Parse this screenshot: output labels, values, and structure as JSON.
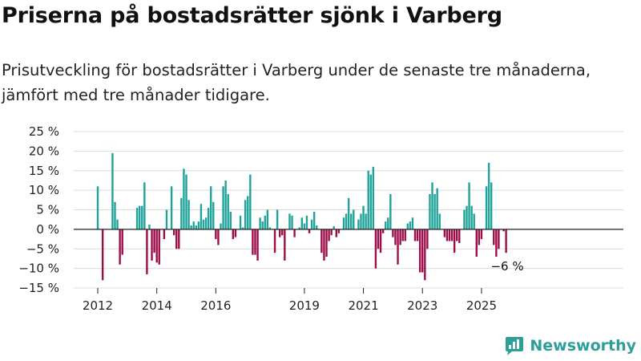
{
  "chart_data": {
    "type": "bar",
    "title": "Priserna på bostadsrätter sjönk i Varberg",
    "subtitle": "Prisutveckling för bostadsrätter i Varberg under de senaste tre månaderna, jämfört med tre månader tidigare.",
    "xlabel": "",
    "ylabel": "",
    "ylim": [
      -15,
      25
    ],
    "yticks": [
      -15,
      -10,
      -5,
      0,
      5,
      10,
      15,
      20,
      25
    ],
    "ytick_labels": [
      "−15 %",
      "−10 %",
      "−5 %",
      "0 %",
      "5 %",
      "10 %",
      "15 %",
      "20 %",
      "25 %"
    ],
    "x_start": "2012-01",
    "xticks": [
      {
        "label": "2012",
        "month_index": 0
      },
      {
        "label": "2014",
        "month_index": 24
      },
      {
        "label": "2016",
        "month_index": 48
      },
      {
        "label": "2019",
        "month_index": 84
      },
      {
        "label": "2021",
        "month_index": 108
      },
      {
        "label": "2023",
        "month_index": 132
      },
      {
        "label": "2025",
        "month_index": 156
      }
    ],
    "values": [
      11,
      null,
      -13,
      null,
      null,
      null,
      19.5,
      7,
      2.5,
      -9,
      -6.5,
      null,
      null,
      null,
      null,
      null,
      5.5,
      6,
      6,
      12,
      -11.5,
      1.2,
      -8,
      -6,
      -8.5,
      -9,
      null,
      -2.5,
      5,
      null,
      11,
      -1.5,
      -5,
      -5,
      8,
      15.5,
      14,
      7.5,
      1,
      2,
      1,
      2,
      6.5,
      2.5,
      3,
      5.5,
      11,
      7,
      -2.5,
      -4,
      1.5,
      11,
      12.5,
      9,
      4.5,
      -2.5,
      -2,
      null,
      3.5,
      0.5,
      7.5,
      8.5,
      14,
      -6.5,
      -6.5,
      -8,
      3,
      2,
      3.5,
      5,
      0.5,
      null,
      -6,
      5,
      -2,
      -1.5,
      -8,
      null,
      4,
      3.5,
      -2,
      null,
      0.5,
      3,
      1.5,
      3.5,
      -1,
      2.5,
      4.5,
      1,
      null,
      -6,
      -8,
      -7,
      -3,
      -1.5,
      0.8,
      -2,
      -1,
      null,
      3,
      4,
      8,
      4,
      5,
      null,
      2.5,
      4,
      6,
      4,
      15,
      14,
      16,
      -10,
      -5,
      -6,
      -1,
      2,
      3,
      9,
      -2,
      -4,
      -9,
      -4,
      -3,
      -3,
      1.5,
      2,
      3,
      -3,
      -3,
      -11,
      -11,
      -13,
      -5,
      9,
      12,
      9,
      10.5,
      4,
      null,
      -2,
      -3,
      -3,
      -3,
      -6,
      -3,
      -3.5,
      null,
      5,
      6,
      12,
      6,
      4,
      -7,
      -4,
      -2.5,
      null,
      11,
      17,
      12,
      -4,
      -7,
      -5,
      null,
      -0.5,
      -6
    ],
    "positive_color": "#20a39a",
    "negative_color": "#9b0e4a",
    "last_value_label": "−6 %",
    "source_logo_text": "Newsworthy"
  }
}
